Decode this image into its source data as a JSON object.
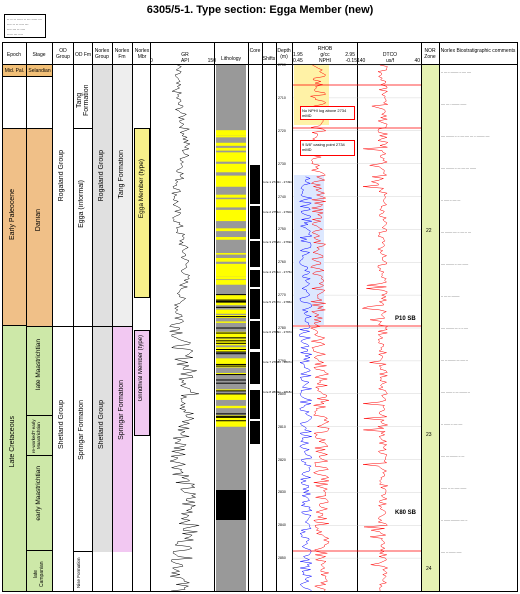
{
  "title": "6305/5-1. Type section: Egga Member (new)",
  "legend_lines": [
    "-- -- -- ----- -- --- ----- ---",
    "---- -- -- ---- ---",
    "---- --- -- ----",
    "----- --- ----"
  ],
  "headers": {
    "epoch": "Epoch",
    "stage": "Stage",
    "od_group": "OD Group",
    "od_fm": "OD Fm",
    "norlex_group": "Norlex Group",
    "norlex_fm": "Norlex Fm",
    "norlex_mbr": "Norlex Mbr",
    "gr": "GR",
    "gr_unit": "API",
    "gr_min": "0",
    "gr_max": "150",
    "lithology": "Lithology",
    "core": "Core",
    "shifts": "Shifts",
    "depth": "Depth (m)",
    "rhob": "RHOB",
    "rhob_unit": "g/cc",
    "rhob_min": "1.95",
    "rhob_max": "2.95",
    "nphi": "NPHI",
    "nphi_min": "0.45",
    "nphi_max": "-0.15",
    "dtco": "DTCO",
    "dtco_unit": "us/f",
    "dtco_min": "140",
    "dtco_max": "40",
    "nor_zone": "NOR Zone",
    "biostrat": "Norlex Biostratigraphic comments"
  },
  "epochs": [
    {
      "label": "Mid. Pal.",
      "color": "#f2c078"
    },
    {
      "label": "Early Paleocene",
      "color": "#f0c088"
    },
    {
      "label": "Late Cretaceous",
      "color": "#cde8a8"
    }
  ],
  "stages": [
    {
      "label": "Selandian",
      "color": "#f2c078"
    },
    {
      "label": "Danian",
      "color": "#f0c088"
    },
    {
      "label": "late Maastrichtian",
      "color": "#cde8a8"
    },
    {
      "label": "re-worked? early Maastrichtian",
      "color": "#cde8a8"
    },
    {
      "label": "early Maastrichtian",
      "color": "#cde8a8"
    },
    {
      "label": "late Campanian",
      "color": "#cde8a8"
    }
  ],
  "groups": {
    "od_rogaland": "Rogaland Group",
    "od_shetland": "Shetland Group",
    "od_tang": "Tang Formation",
    "od_egga": "Egga (informal)",
    "od_springar": "Springar Formation",
    "od_nise": "Nise Formation",
    "nx_rogaland": "Rogaland Group",
    "nx_shetland": "Shetland Group",
    "nx_tang": "Tang Formation",
    "nx_springar": "Springar Formation",
    "nx_egga": "Egga Member (type)",
    "nx_grindhval": "Grindhval Member (type)"
  },
  "depths": {
    "top": "2700",
    "d1": "2710",
    "d2": "2720",
    "d3": "2730",
    "d4": "2740",
    "d5": "2750",
    "d6": "2760",
    "d7": "2770",
    "d8": "2780",
    "d9": "2790",
    "d10": "2800",
    "d11": "2810",
    "d12": "2820",
    "d13": "2830",
    "d14": "2840",
    "d15": "2850"
  },
  "annotations": {
    "nph_drop": "No NPHI log above 2734 mMD",
    "casing": "9 5/8\" casing point 2734 mMD",
    "sb_p10": "P10 SB",
    "sb_k80": "K80 SB"
  },
  "core_labels": [
    "Core 1 2740m - 2749m",
    "Core 2 2751m - 2760m",
    "Core 3 2762m - 2769m",
    "Core 4 2771m - 2776m",
    "Core 5 2777m - 2786m",
    "Core 6 2788m - 2797m",
    "Core 7 2799m - 2807m",
    "Core 8 2810m - 2818m"
  ],
  "zones": [
    "22",
    "23",
    "24"
  ],
  "biostrat_comments": [
    "-- --- -- -------- -- ---- ----",
    "---- --- - -------- ------",
    "---- -------- -- -- ---- ---- --- -- -------- ----",
    "---- -------- -- --- ---- --- ------",
    "-- ----- -- ---- ---",
    "--- ------- ---- -- ---- -- ---",
    "---- -------- -- ---- ------",
    "-- --- --- --------",
    "---- -------- --- -- -- ----",
    "--- -- -------- --- ----- --",
    "---- ------ -- --- -------- --",
    "-- ------ -- ---- ----",
    "---- --- -------- -- ---",
    "------ -- --- ----- ------",
    "-- ------ --------- ---- --",
    "---- -- ------- -----"
  ],
  "colors": {
    "egga": "#f7f08a",
    "grindhval": "#f1c9f1",
    "tang_nx": "#f2c8f2",
    "gr_track": "#000000",
    "rhob": "#ff0000",
    "nphi": "#0000ff",
    "dtco": "#ff0000",
    "zone_bg": "#e6f2b3",
    "lith_shale": "#999999",
    "lith_sand": "#ffff00"
  },
  "chart_data": {
    "type": "line",
    "title": "6305/5-1. Type section: Egga Member (new)",
    "ylabel": "Depth (m)",
    "ylim": [
      2700,
      2860
    ],
    "series": [
      {
        "name": "GR",
        "unit": "API",
        "xlim": [
          0,
          150
        ],
        "x": [
          2700,
          2710,
          2720,
          2730,
          2740,
          2750,
          2760,
          2770,
          2780,
          2790,
          2800,
          2810,
          2820,
          2830,
          2840,
          2850,
          2860
        ],
        "values": [
          85,
          80,
          78,
          70,
          62,
          55,
          60,
          52,
          70,
          78,
          88,
          95,
          90,
          92,
          94,
          93,
          95
        ]
      },
      {
        "name": "RHOB",
        "unit": "g/cc",
        "xlim": [
          1.95,
          2.95
        ],
        "x": [
          2700,
          2710,
          2720,
          2730,
          2740,
          2750,
          2760,
          2770,
          2780,
          2790,
          2800,
          2810,
          2820,
          2830,
          2840,
          2850,
          2860
        ],
        "values": [
          2.3,
          2.35,
          2.3,
          2.2,
          2.25,
          2.3,
          2.35,
          2.3,
          2.4,
          2.45,
          2.35,
          2.4,
          2.3,
          2.35,
          2.35,
          2.3,
          2.35
        ]
      },
      {
        "name": "NPHI",
        "xlim": [
          0.45,
          -0.15
        ],
        "x": [
          2730,
          2740,
          2750,
          2760,
          2770,
          2780,
          2790,
          2800,
          2810,
          2820,
          2830,
          2840,
          2850,
          2860
        ],
        "values": [
          0.3,
          0.35,
          0.32,
          0.3,
          0.34,
          0.36,
          0.33,
          0.38,
          0.36,
          0.34,
          0.35,
          0.37,
          0.36,
          0.35
        ]
      },
      {
        "name": "DTCO",
        "unit": "us/f",
        "xlim": [
          140,
          40
        ],
        "x": [
          2700,
          2710,
          2720,
          2730,
          2740,
          2750,
          2760,
          2770,
          2780,
          2790,
          2800,
          2810,
          2820,
          2830,
          2840,
          2850,
          2860
        ],
        "values": [
          105,
          100,
          102,
          98,
          110,
          108,
          112,
          106,
          100,
          95,
          110,
          98,
          92,
          95,
          100,
          104,
          102
        ]
      }
    ]
  }
}
